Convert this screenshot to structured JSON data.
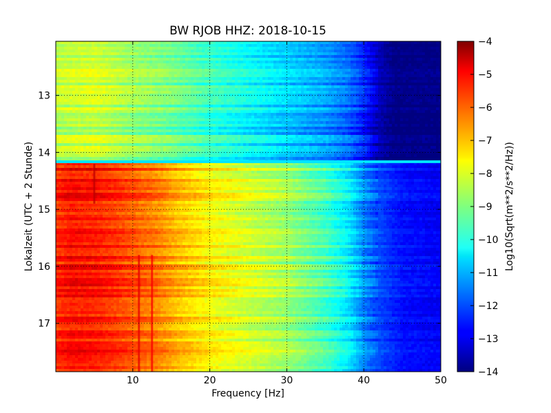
{
  "chart_data": {
    "type": "heatmap",
    "title": "BW RJOB HHZ: 2018-10-15",
    "xlabel": "Frequency [Hz]",
    "ylabel": "Lokalzeit (UTC + 2 Stunde)",
    "xlim": [
      0,
      50
    ],
    "ylim": [
      12.05,
      17.85
    ],
    "y_inverted": true,
    "grid": true,
    "colormap": "jet",
    "x_ticks": [
      10,
      20,
      30,
      40,
      50
    ],
    "y_ticks": [
      13,
      14,
      15,
      16,
      17
    ],
    "colorbar": {
      "label": "Log10(Sqrt(m**2/s**2/Hz))",
      "range": [
        -14,
        -4
      ],
      "ticks": [
        -4,
        -5,
        -6,
        -7,
        -8,
        -9,
        -10,
        -11,
        -12,
        -13,
        -14
      ]
    },
    "segments": [
      {
        "time_range": [
          12.05,
          14.17
        ],
        "frequency_hz": [
          0,
          5,
          10,
          15,
          20,
          25,
          30,
          35,
          38,
          40,
          42,
          44,
          50
        ],
        "level": [
          -8.5,
          -8.3,
          -8.8,
          -9.2,
          -9.8,
          -10.3,
          -10.8,
          -11.3,
          -11.8,
          -12.5,
          -13.5,
          -14,
          -14
        ]
      },
      {
        "time_range": [
          14.17,
          17.85
        ],
        "frequency_hz": [
          0,
          2,
          5,
          8,
          10,
          13,
          16,
          20,
          25,
          30,
          35,
          38,
          40,
          42,
          45,
          50
        ],
        "level": [
          -5.6,
          -5.3,
          -5.4,
          -5.7,
          -6.0,
          -6.4,
          -7.0,
          -7.6,
          -8.1,
          -8.6,
          -9.5,
          -10.3,
          -11.3,
          -12.0,
          -12.6,
          -12.8
        ]
      }
    ],
    "features": [
      {
        "type": "horizontal-stripe",
        "time": 14.17,
        "level": -10.5
      },
      {
        "type": "vertical-line",
        "frequency_hz": 5,
        "time_range": [
          14.2,
          14.9
        ],
        "level": -4.6
      },
      {
        "type": "vertical-line",
        "frequency_hz": 10.8,
        "time_range": [
          15.8,
          17.85
        ],
        "level": -5.0
      },
      {
        "type": "vertical-line",
        "frequency_hz": 12.5,
        "time_range": [
          15.8,
          17.85
        ],
        "level": -5.2
      }
    ]
  }
}
